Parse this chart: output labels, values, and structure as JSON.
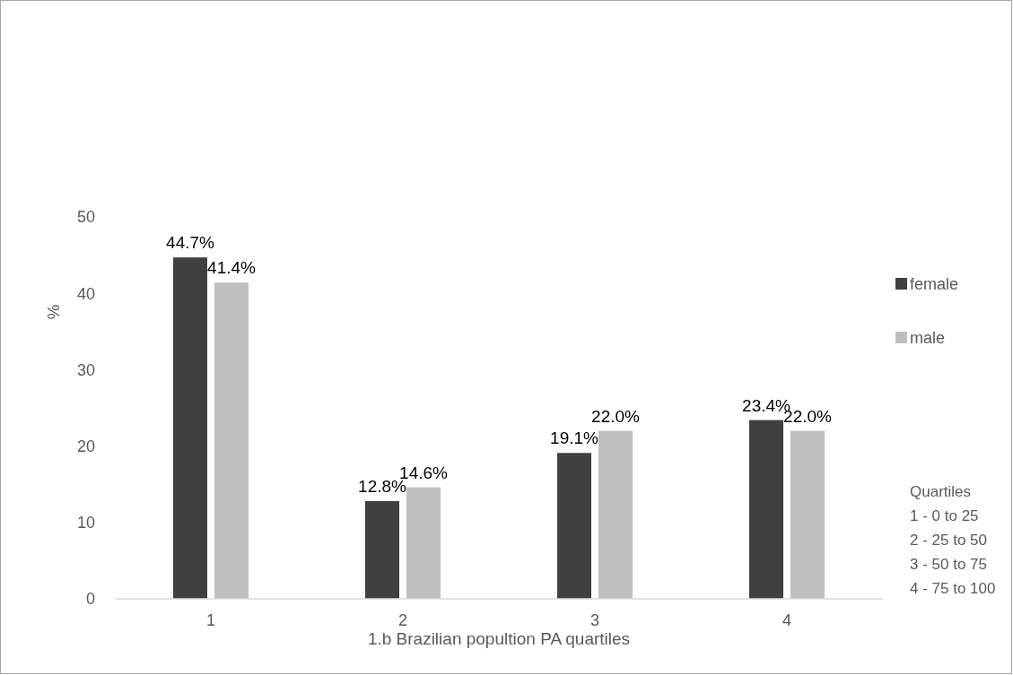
{
  "chart_data": {
    "type": "bar",
    "xlabel": "1.b Brazilian popultion PA quartiles",
    "ylabel": "%",
    "categories": [
      "1",
      "2",
      "3",
      "4"
    ],
    "series": [
      {
        "name": "female",
        "color": "#404040",
        "values": [
          44.7,
          12.8,
          19.1,
          23.4
        ],
        "value_labels": [
          "44.7%",
          "12.8%",
          "19.1%",
          "23.4%"
        ]
      },
      {
        "name": "male",
        "color": "#bfbfbf",
        "values": [
          41.4,
          14.6,
          22.0,
          22.0
        ],
        "value_labels": [
          "41.4%",
          "14.6%",
          "22.0%",
          "22.0%"
        ]
      }
    ],
    "ylim": [
      0,
      50
    ],
    "yticks": [
      0,
      10,
      20,
      30,
      40,
      50
    ],
    "grid": false,
    "legend": "right",
    "annotations": [
      "Quartiles",
      "1 - 0 to 25",
      "2 - 25 to 50",
      "3 - 50 to 75",
      "4 - 75 to 100"
    ]
  }
}
